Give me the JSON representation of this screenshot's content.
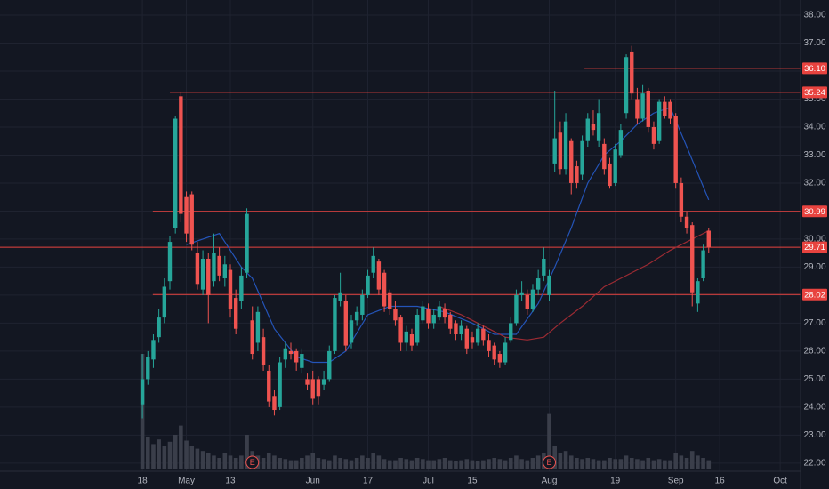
{
  "chart_data": {
    "type": "candlestick",
    "up_color": "#26a69a",
    "down_color": "#ef5350",
    "xlim": [
      -25.9,
      119.7
    ],
    "xticks": [
      {
        "value": 0,
        "label": "18"
      },
      {
        "value": 8,
        "label": "May"
      },
      {
        "value": 16,
        "label": "13"
      },
      {
        "value": 31,
        "label": "Jun"
      },
      {
        "value": 41,
        "label": "17"
      },
      {
        "value": 52,
        "label": "Jul"
      },
      {
        "value": 60,
        "label": "15"
      },
      {
        "value": 74,
        "label": "Aug"
      },
      {
        "value": 86,
        "label": "19"
      },
      {
        "value": 97,
        "label": "Sep"
      },
      {
        "value": 105,
        "label": "16"
      },
      {
        "value": 116,
        "label": "Oct"
      }
    ],
    "ylim": [
      21.71,
      38.54
    ],
    "yticks": [
      {
        "value": 22,
        "label": "22.00"
      },
      {
        "value": 23,
        "label": "23.00"
      },
      {
        "value": 24,
        "label": "24.00"
      },
      {
        "value": 25,
        "label": "25.00"
      },
      {
        "value": 26,
        "label": "26.00"
      },
      {
        "value": 27,
        "label": "27.00"
      },
      {
        "value": 28,
        "label": "28.00"
      },
      {
        "value": 29,
        "label": "29.00"
      },
      {
        "value": 30,
        "label": "30.00"
      },
      {
        "value": 31,
        "label": "31.00"
      },
      {
        "value": 32,
        "label": "32.00"
      },
      {
        "value": 33,
        "label": "33.00"
      },
      {
        "value": 34,
        "label": "34.00"
      },
      {
        "value": 35,
        "label": "35.00"
      },
      {
        "value": 36,
        "label": "36.00"
      },
      {
        "value": 37,
        "label": "37.00"
      },
      {
        "value": 38,
        "label": "38.00"
      }
    ],
    "grid": true,
    "ohlc": [
      [
        24.1,
        25.9,
        23.6,
        25.0
      ],
      [
        25.0,
        26.0,
        24.8,
        25.8
      ],
      [
        25.7,
        26.6,
        25.4,
        26.4
      ],
      [
        26.5,
        27.5,
        26.3,
        27.2
      ],
      [
        27.2,
        28.6,
        27.0,
        28.3
      ],
      [
        28.5,
        30.1,
        28.2,
        29.9
      ],
      [
        30.4,
        34.4,
        30.2,
        34.3
      ],
      [
        35.1,
        35.24,
        30.6,
        30.9
      ],
      [
        31.5,
        31.7,
        29.9,
        30.2
      ],
      [
        31.6,
        31.7,
        29.6,
        29.8
      ],
      [
        29.5,
        29.9,
        28.2,
        28.4
      ],
      [
        28.2,
        29.6,
        28.0,
        29.3
      ],
      [
        29.3,
        29.5,
        27.0,
        28.0
      ],
      [
        28.5,
        30.2,
        28.3,
        29.5
      ],
      [
        29.4,
        29.7,
        28.5,
        28.7
      ],
      [
        28.6,
        29.4,
        28.3,
        29.1
      ],
      [
        28.9,
        29.1,
        27.2,
        27.5
      ],
      [
        27.9,
        28.2,
        26.6,
        26.8
      ],
      [
        27.8,
        29.0,
        27.5,
        28.7
      ],
      [
        28.8,
        31.1,
        28.6,
        30.9
      ],
      [
        27.1,
        27.6,
        25.7,
        25.9
      ],
      [
        26.3,
        27.6,
        26.0,
        27.4
      ],
      [
        26.5,
        26.8,
        25.3,
        25.5
      ],
      [
        25.3,
        25.5,
        24.0,
        24.2
      ],
      [
        24.4,
        24.6,
        23.7,
        23.9
      ],
      [
        24.0,
        25.8,
        23.9,
        25.6
      ],
      [
        25.7,
        26.3,
        25.4,
        26.1
      ],
      [
        26.0,
        26.3,
        25.7,
        25.9
      ],
      [
        26.0,
        26.1,
        25.3,
        25.6
      ],
      [
        25.4,
        26.1,
        25.2,
        25.9
      ],
      [
        25.0,
        25.2,
        24.6,
        24.8
      ],
      [
        25.0,
        25.3,
        24.1,
        24.3
      ],
      [
        25.0,
        25.1,
        24.1,
        24.4
      ],
      [
        24.8,
        25.3,
        24.6,
        25.0
      ],
      [
        25.0,
        26.2,
        24.9,
        26.0
      ],
      [
        26.0,
        28.0,
        25.9,
        27.9
      ],
      [
        27.8,
        28.8,
        27.6,
        28.1
      ],
      [
        27.8,
        28.0,
        26.0,
        26.2
      ],
      [
        26.3,
        27.3,
        26.1,
        27.1
      ],
      [
        27.1,
        27.6,
        26.9,
        27.4
      ],
      [
        27.3,
        28.2,
        27.1,
        28.0
      ],
      [
        28.0,
        28.9,
        27.9,
        28.7
      ],
      [
        28.8,
        29.7,
        28.6,
        29.4
      ],
      [
        29.2,
        29.3,
        28.0,
        28.2
      ],
      [
        28.8,
        28.9,
        27.4,
        27.6
      ],
      [
        28.1,
        28.2,
        27.3,
        27.5
      ],
      [
        27.5,
        27.8,
        26.9,
        27.1
      ],
      [
        27.2,
        27.3,
        26.0,
        26.3
      ],
      [
        26.3,
        26.9,
        26.0,
        26.7
      ],
      [
        26.6,
        26.8,
        26.0,
        26.2
      ],
      [
        26.3,
        27.5,
        26.2,
        27.3
      ],
      [
        27.1,
        27.8,
        27.0,
        27.6
      ],
      [
        27.5,
        27.7,
        26.8,
        27.0
      ],
      [
        27.0,
        27.5,
        26.8,
        27.3
      ],
      [
        27.2,
        27.8,
        27.1,
        27.6
      ],
      [
        27.5,
        27.7,
        27.0,
        27.2
      ],
      [
        27.3,
        27.4,
        26.6,
        26.8
      ],
      [
        27.0,
        27.1,
        26.4,
        26.6
      ],
      [
        26.6,
        27.1,
        26.4,
        26.9
      ],
      [
        26.8,
        26.9,
        25.9,
        26.1
      ],
      [
        26.5,
        26.7,
        26.1,
        26.3
      ],
      [
        26.3,
        27.0,
        26.2,
        26.8
      ],
      [
        26.8,
        26.9,
        26.2,
        26.4
      ],
      [
        26.4,
        26.6,
        25.8,
        26.0
      ],
      [
        26.2,
        26.3,
        25.5,
        25.7
      ],
      [
        25.9,
        26.0,
        25.4,
        25.6
      ],
      [
        25.6,
        26.5,
        25.5,
        26.3
      ],
      [
        26.4,
        27.2,
        26.3,
        27.0
      ],
      [
        27.0,
        28.2,
        26.9,
        28.0
      ],
      [
        28.0,
        28.5,
        27.8,
        28.1
      ],
      [
        28.0,
        28.2,
        27.3,
        27.5
      ],
      [
        27.5,
        28.4,
        27.4,
        28.2
      ],
      [
        28.2,
        28.9,
        28.0,
        28.6
      ],
      [
        28.7,
        29.7,
        28.5,
        29.3
      ],
      [
        28.0,
        28.9,
        27.8,
        28.7
      ],
      [
        32.7,
        35.3,
        32.4,
        33.6
      ],
      [
        33.8,
        34.2,
        32.3,
        32.5
      ],
      [
        32.5,
        34.5,
        32.3,
        34.2
      ],
      [
        33.5,
        33.6,
        31.6,
        32.0
      ],
      [
        32.6,
        32.8,
        31.8,
        32.0
      ],
      [
        32.3,
        33.7,
        32.1,
        33.5
      ],
      [
        33.5,
        34.5,
        33.3,
        34.3
      ],
      [
        34.1,
        34.6,
        33.7,
        33.9
      ],
      [
        33.5,
        35.0,
        33.3,
        34.5
      ],
      [
        33.4,
        33.6,
        32.3,
        32.5
      ],
      [
        32.7,
        32.9,
        31.8,
        31.9
      ],
      [
        32.0,
        33.4,
        31.9,
        33.2
      ],
      [
        33.0,
        34.1,
        32.9,
        33.9
      ],
      [
        34.5,
        36.6,
        34.3,
        36.5
      ],
      [
        36.7,
        36.9,
        35.0,
        35.2
      ],
      [
        35.0,
        35.4,
        34.1,
        34.3
      ],
      [
        34.3,
        35.5,
        34.2,
        35.2
      ],
      [
        35.3,
        35.4,
        33.8,
        34.0
      ],
      [
        34.0,
        34.2,
        33.2,
        33.4
      ],
      [
        33.5,
        35.0,
        33.4,
        34.9
      ],
      [
        34.9,
        35.1,
        34.3,
        34.4
      ],
      [
        34.9,
        35.0,
        34.1,
        34.3
      ],
      [
        34.4,
        34.5,
        31.8,
        32.0
      ],
      [
        32.0,
        32.2,
        30.6,
        30.8
      ],
      [
        30.8,
        31.0,
        30.2,
        30.4
      ],
      [
        30.5,
        30.6,
        27.6,
        28.1
      ],
      [
        27.7,
        28.6,
        27.4,
        28.5
      ],
      [
        28.6,
        29.8,
        28.5,
        29.6
      ],
      [
        30.3,
        30.4,
        29.5,
        29.7
      ]
    ],
    "volume_color": "#3a3e4a",
    "volume": [
      100,
      28,
      22,
      26,
      20,
      24,
      30,
      38,
      25,
      20,
      18,
      16,
      14,
      12,
      10,
      14,
      12,
      10,
      12,
      30,
      16,
      12,
      10,
      14,
      12,
      10,
      9,
      8,
      8,
      10,
      12,
      14,
      10,
      9,
      8,
      12,
      10,
      9,
      8,
      10,
      12,
      10,
      14,
      12,
      9,
      8,
      8,
      10,
      9,
      8,
      10,
      9,
      8,
      8,
      9,
      10,
      8,
      7,
      8,
      9,
      8,
      7,
      8,
      9,
      10,
      9,
      8,
      10,
      12,
      9,
      8,
      10,
      12,
      14,
      48,
      20,
      14,
      16,
      12,
      10,
      9,
      10,
      9,
      8,
      8,
      10,
      9,
      9,
      12,
      10,
      9,
      8,
      10,
      8,
      9,
      8,
      8,
      14,
      12,
      10,
      16,
      12,
      10,
      8
    ],
    "moving_averages": [
      {
        "color": "#2454b8",
        "x": [
          8,
          14,
          18,
          20,
          24,
          28,
          31,
          34,
          37,
          41,
          45,
          50,
          55,
          60,
          64,
          68,
          72,
          75,
          78,
          81,
          84,
          87,
          90,
          93,
          96,
          99,
          103
        ],
        "values": [
          29.8,
          30.2,
          29.0,
          28.6,
          26.8,
          25.8,
          25.6,
          25.6,
          26.0,
          27.3,
          27.6,
          27.6,
          27.4,
          27.0,
          26.6,
          26.6,
          27.7,
          29.0,
          30.4,
          32.0,
          33.0,
          33.5,
          34.1,
          34.5,
          34.7,
          33.3,
          31.4
        ]
      },
      {
        "color": "#9c2b33",
        "x": [
          54,
          58,
          62,
          66,
          70,
          73,
          76,
          80,
          84,
          88,
          92,
          96,
          100,
          103
        ],
        "values": [
          27.6,
          27.3,
          26.9,
          26.5,
          26.4,
          26.5,
          27.0,
          27.6,
          28.3,
          28.7,
          29.1,
          29.6,
          30.0,
          30.3
        ]
      }
    ],
    "level_color": "#e8433f",
    "levels": [
      {
        "value": 36.1,
        "label": "36.10",
        "from": 80.4
      },
      {
        "value": 35.24,
        "label": "35.24",
        "from": 5
      },
      {
        "value": 30.99,
        "label": "30.99",
        "from": 1.9
      },
      {
        "value": 29.71,
        "label": "29.71",
        "from": -25.9
      },
      {
        "value": 28.02,
        "label": "28.02",
        "from": 1.9
      }
    ],
    "events": [
      {
        "x": 20,
        "label": "E"
      },
      {
        "x": 74,
        "label": "E"
      }
    ]
  }
}
